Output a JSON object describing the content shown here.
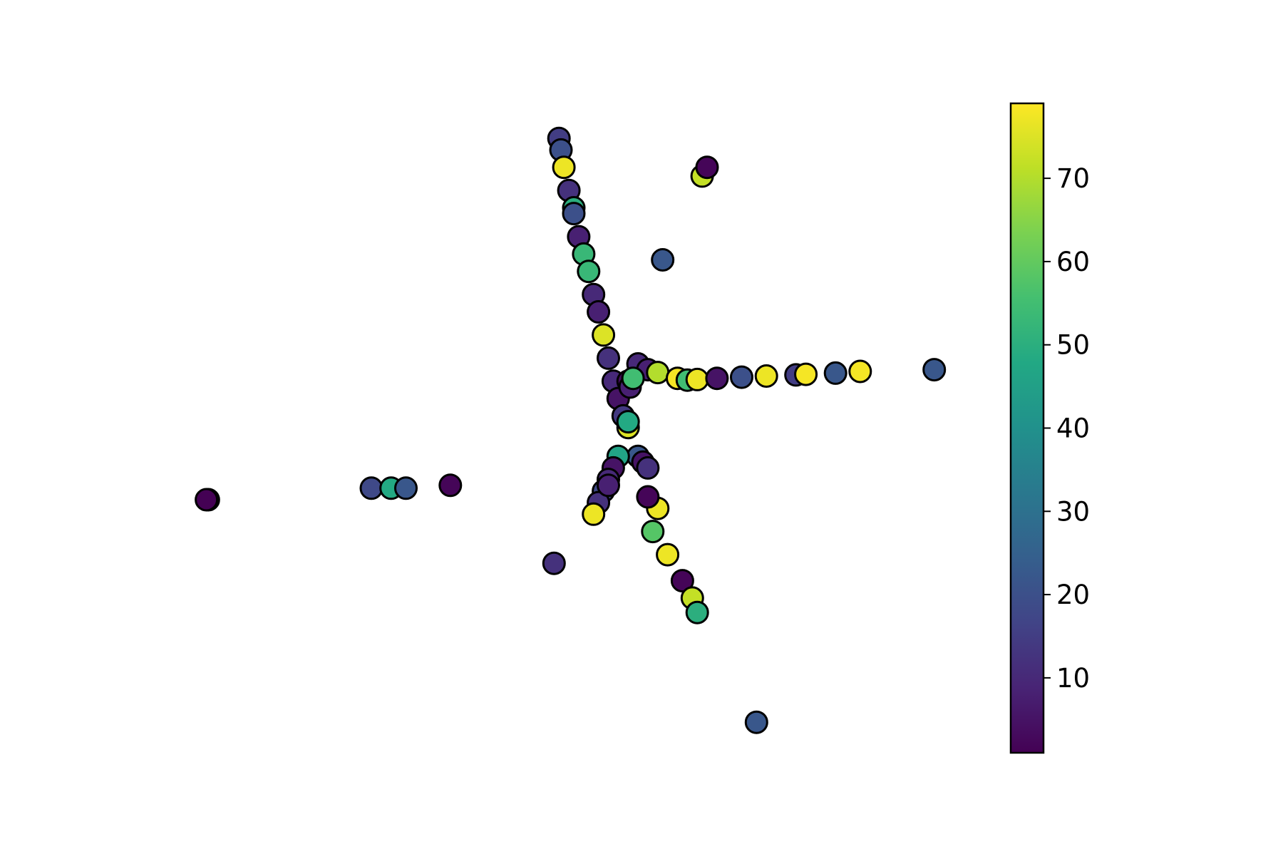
{
  "chart_data": {
    "type": "scatter",
    "title": "",
    "xlabel": "",
    "ylabel": "",
    "axes_visible": false,
    "grid": false,
    "marker": {
      "fill": "viridis-colormap",
      "edge_color": "#000000"
    },
    "colorbar": {
      "colormap": "viridis",
      "range": [
        1,
        79
      ],
      "ticks": [
        10,
        20,
        30,
        40,
        50,
        60,
        70
      ],
      "tick_labels": [
        "10",
        "20",
        "30",
        "40",
        "50",
        "60",
        "70"
      ],
      "placement": "right"
    },
    "points": [
      {
        "x": -2.55,
        "y": 0.25,
        "c": 52
      },
      {
        "x": -2.57,
        "y": 0.25,
        "c": 1
      },
      {
        "x": -0.9,
        "y": 0.45,
        "c": 18
      },
      {
        "x": -0.7,
        "y": 0.45,
        "c": 48
      },
      {
        "x": -0.55,
        "y": 0.45,
        "c": 22
      },
      {
        "x": -0.1,
        "y": 0.5,
        "c": 2
      },
      {
        "x": 1.0,
        "y": 6.5,
        "c": 15
      },
      {
        "x": 1.02,
        "y": 6.3,
        "c": 20
      },
      {
        "x": 1.05,
        "y": 6.0,
        "c": 77
      },
      {
        "x": 1.1,
        "y": 5.6,
        "c": 12
      },
      {
        "x": 1.15,
        "y": 5.3,
        "c": 50
      },
      {
        "x": 1.15,
        "y": 5.2,
        "c": 20
      },
      {
        "x": 1.2,
        "y": 4.8,
        "c": 8
      },
      {
        "x": 1.25,
        "y": 4.5,
        "c": 53
      },
      {
        "x": 1.3,
        "y": 4.2,
        "c": 53
      },
      {
        "x": 1.35,
        "y": 3.8,
        "c": 10
      },
      {
        "x": 1.4,
        "y": 3.5,
        "c": 8
      },
      {
        "x": 1.45,
        "y": 3.1,
        "c": 75
      },
      {
        "x": 1.5,
        "y": 2.7,
        "c": 12
      },
      {
        "x": 1.55,
        "y": 2.3,
        "c": 10
      },
      {
        "x": 1.6,
        "y": 2.0,
        "c": 5
      },
      {
        "x": 1.65,
        "y": 1.7,
        "c": 14
      },
      {
        "x": 1.7,
        "y": 1.5,
        "c": 75
      },
      {
        "x": 1.8,
        "y": 1.0,
        "c": 22
      },
      {
        "x": 1.85,
        "y": 0.9,
        "c": 5
      },
      {
        "x": 1.9,
        "y": 0.8,
        "c": 12
      },
      {
        "x": 2.0,
        "y": 0.1,
        "c": 77
      },
      {
        "x": 1.9,
        "y": 0.3,
        "c": 2
      },
      {
        "x": 1.95,
        "y": -0.3,
        "c": 58
      },
      {
        "x": 2.1,
        "y": -0.7,
        "c": 77
      },
      {
        "x": 1.7,
        "y": 1.6,
        "c": 48
      },
      {
        "x": 1.6,
        "y": 1.0,
        "c": 46
      },
      {
        "x": 1.55,
        "y": 0.8,
        "c": 5
      },
      {
        "x": 1.5,
        "y": 0.6,
        "c": 10
      },
      {
        "x": 1.45,
        "y": 0.4,
        "c": 18
      },
      {
        "x": 1.4,
        "y": 0.2,
        "c": 12
      },
      {
        "x": 1.35,
        "y": 0.0,
        "c": 77
      },
      {
        "x": 1.5,
        "y": 0.5,
        "c": 8
      },
      {
        "x": 1.8,
        "y": 2.6,
        "c": 10
      },
      {
        "x": 1.9,
        "y": 2.5,
        "c": 8
      },
      {
        "x": 2.0,
        "y": 2.45,
        "c": 70
      },
      {
        "x": 2.2,
        "y": 2.35,
        "c": 78
      },
      {
        "x": 2.3,
        "y": 2.32,
        "c": 55
      },
      {
        "x": 2.4,
        "y": 2.33,
        "c": 77
      },
      {
        "x": 2.6,
        "y": 2.35,
        "c": 5
      },
      {
        "x": 2.85,
        "y": 2.37,
        "c": 20
      },
      {
        "x": 3.1,
        "y": 2.39,
        "c": 77
      },
      {
        "x": 3.4,
        "y": 2.41,
        "c": 15
      },
      {
        "x": 3.5,
        "y": 2.42,
        "c": 78
      },
      {
        "x": 3.8,
        "y": 2.44,
        "c": 22
      },
      {
        "x": 4.05,
        "y": 2.47,
        "c": 78
      },
      {
        "x": 4.8,
        "y": 2.5,
        "c": 22
      },
      {
        "x": 1.7,
        "y": 2.3,
        "c": 3
      },
      {
        "x": 1.72,
        "y": 2.2,
        "c": 8
      },
      {
        "x": 1.75,
        "y": 2.35,
        "c": 55
      },
      {
        "x": 2.45,
        "y": 5.85,
        "c": 72
      },
      {
        "x": 2.5,
        "y": 6.0,
        "c": 2
      },
      {
        "x": 2.05,
        "y": 4.4,
        "c": 22
      },
      {
        "x": 2.25,
        "y": -1.15,
        "c": 2
      },
      {
        "x": 2.35,
        "y": -1.45,
        "c": 72
      },
      {
        "x": 2.4,
        "y": -1.7,
        "c": 50
      },
      {
        "x": 0.95,
        "y": -0.85,
        "c": 12
      },
      {
        "x": 3.0,
        "y": -3.6,
        "c": 22
      }
    ]
  }
}
